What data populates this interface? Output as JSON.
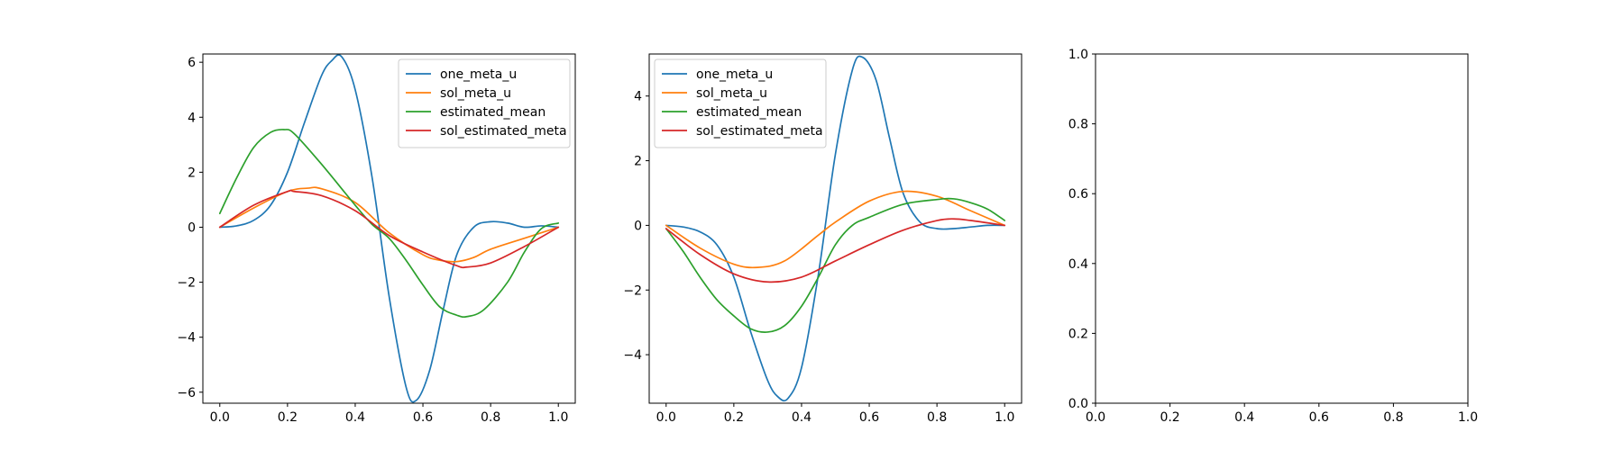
{
  "chart_data": [
    {
      "type": "line",
      "xlim": [
        -0.05,
        1.05
      ],
      "ylim": [
        -6.4,
        6.3
      ],
      "xticks": [
        0.0,
        0.2,
        0.4,
        0.6,
        0.8,
        1.0
      ],
      "xtick_labels": [
        "0.0",
        "0.2",
        "0.4",
        "0.6",
        "0.8",
        "1.0"
      ],
      "yticks": [
        -6,
        -4,
        -2,
        0,
        2,
        4,
        6
      ],
      "ytick_labels": [
        "−6",
        "−4",
        "−2",
        "0",
        "2",
        "4",
        "6"
      ],
      "grid": false,
      "legend_position": "top-right",
      "series": [
        {
          "name": "one_meta_u",
          "color": "#1f77b4",
          "x": [
            0.0,
            0.05,
            0.1,
            0.15,
            0.2,
            0.25,
            0.3,
            0.33,
            0.36,
            0.4,
            0.45,
            0.5,
            0.55,
            0.58,
            0.62,
            0.66,
            0.7,
            0.75,
            0.8,
            0.85,
            0.9,
            0.95,
            1.0
          ],
          "y": [
            0.0,
            0.05,
            0.25,
            0.8,
            2.0,
            3.8,
            5.5,
            6.05,
            6.2,
            5.0,
            1.8,
            -2.5,
            -5.8,
            -6.3,
            -5.2,
            -3.0,
            -1.0,
            0.0,
            0.2,
            0.15,
            0.0,
            0.05,
            0.0
          ]
        },
        {
          "name": "sol_meta_u",
          "color": "#ff7f0e",
          "x": [
            0.0,
            0.1,
            0.2,
            0.26,
            0.3,
            0.4,
            0.5,
            0.6,
            0.65,
            0.7,
            0.75,
            0.8,
            0.9,
            1.0
          ],
          "y": [
            0.0,
            0.7,
            1.3,
            1.42,
            1.4,
            0.9,
            -0.2,
            -1.0,
            -1.2,
            -1.25,
            -1.1,
            -0.8,
            -0.4,
            0.0
          ]
        },
        {
          "name": "estimated_mean",
          "color": "#2ca02c",
          "x": [
            0.0,
            0.05,
            0.1,
            0.15,
            0.19,
            0.22,
            0.3,
            0.4,
            0.45,
            0.5,
            0.55,
            0.6,
            0.65,
            0.7,
            0.73,
            0.78,
            0.85,
            0.9,
            0.95,
            1.0
          ],
          "y": [
            0.5,
            1.8,
            2.9,
            3.45,
            3.55,
            3.4,
            2.3,
            0.8,
            0.1,
            -0.4,
            -1.2,
            -2.1,
            -2.9,
            -3.2,
            -3.25,
            -3.0,
            -2.0,
            -0.9,
            -0.05,
            0.15
          ]
        },
        {
          "name": "sol_estimated_meta",
          "color": "#d62728",
          "x": [
            0.0,
            0.1,
            0.2,
            0.22,
            0.3,
            0.4,
            0.5,
            0.6,
            0.7,
            0.73,
            0.8,
            0.9,
            1.0
          ],
          "y": [
            0.0,
            0.8,
            1.3,
            1.3,
            1.15,
            0.6,
            -0.3,
            -0.9,
            -1.4,
            -1.45,
            -1.3,
            -0.7,
            0.0
          ]
        }
      ]
    },
    {
      "type": "line",
      "xlim": [
        -0.05,
        1.05
      ],
      "ylim": [
        -5.5,
        5.3
      ],
      "xticks": [
        0.0,
        0.2,
        0.4,
        0.6,
        0.8,
        1.0
      ],
      "xtick_labels": [
        "0.0",
        "0.2",
        "0.4",
        "0.6",
        "0.8",
        "1.0"
      ],
      "yticks": [
        -4,
        -2,
        0,
        2,
        4
      ],
      "ytick_labels": [
        "−4",
        "−2",
        "0",
        "2",
        "4"
      ],
      "grid": false,
      "legend_position": "top-left",
      "series": [
        {
          "name": "one_meta_u",
          "color": "#1f77b4",
          "x": [
            0.0,
            0.05,
            0.1,
            0.15,
            0.2,
            0.25,
            0.3,
            0.33,
            0.36,
            0.4,
            0.45,
            0.5,
            0.55,
            0.58,
            0.62,
            0.66,
            0.7,
            0.75,
            0.8,
            0.85,
            0.9,
            0.95,
            1.0
          ],
          "y": [
            0.0,
            -0.05,
            -0.2,
            -0.6,
            -1.6,
            -3.3,
            -4.8,
            -5.3,
            -5.35,
            -4.4,
            -1.5,
            2.2,
            4.8,
            5.2,
            4.5,
            2.7,
            1.0,
            0.1,
            -0.1,
            -0.1,
            -0.05,
            0.0,
            0.0
          ]
        },
        {
          "name": "sol_meta_u",
          "color": "#ff7f0e",
          "x": [
            0.0,
            0.1,
            0.2,
            0.27,
            0.35,
            0.45,
            0.5,
            0.6,
            0.7,
            0.8,
            0.9,
            1.0
          ],
          "y": [
            0.0,
            -0.7,
            -1.2,
            -1.3,
            -1.1,
            -0.3,
            0.1,
            0.75,
            1.05,
            0.9,
            0.45,
            0.0
          ]
        },
        {
          "name": "estimated_mean",
          "color": "#2ca02c",
          "x": [
            0.0,
            0.05,
            0.1,
            0.15,
            0.2,
            0.25,
            0.3,
            0.35,
            0.4,
            0.45,
            0.5,
            0.55,
            0.6,
            0.7,
            0.8,
            0.85,
            0.9,
            0.95,
            1.0
          ],
          "y": [
            -0.1,
            -0.8,
            -1.6,
            -2.3,
            -2.8,
            -3.2,
            -3.3,
            -3.1,
            -2.5,
            -1.6,
            -0.6,
            0.0,
            0.25,
            0.65,
            0.8,
            0.82,
            0.7,
            0.5,
            0.15
          ]
        },
        {
          "name": "sol_estimated_meta",
          "color": "#d62728",
          "x": [
            0.0,
            0.1,
            0.2,
            0.3,
            0.4,
            0.5,
            0.6,
            0.7,
            0.8,
            0.85,
            0.9,
            1.0
          ],
          "y": [
            -0.1,
            -0.9,
            -1.5,
            -1.75,
            -1.6,
            -1.1,
            -0.6,
            -0.15,
            0.15,
            0.2,
            0.15,
            0.0
          ]
        }
      ]
    },
    {
      "type": "line",
      "xlim": [
        0.0,
        1.0
      ],
      "ylim": [
        0.0,
        1.0
      ],
      "xticks": [
        0.0,
        0.2,
        0.4,
        0.6,
        0.8,
        1.0
      ],
      "xtick_labels": [
        "0.0",
        "0.2",
        "0.4",
        "0.6",
        "0.8",
        "1.0"
      ],
      "yticks": [
        0.0,
        0.2,
        0.4,
        0.6,
        0.8,
        1.0
      ],
      "ytick_labels": [
        "0.0",
        "0.2",
        "0.4",
        "0.6",
        "0.8",
        "1.0"
      ],
      "grid": false,
      "series": []
    }
  ]
}
